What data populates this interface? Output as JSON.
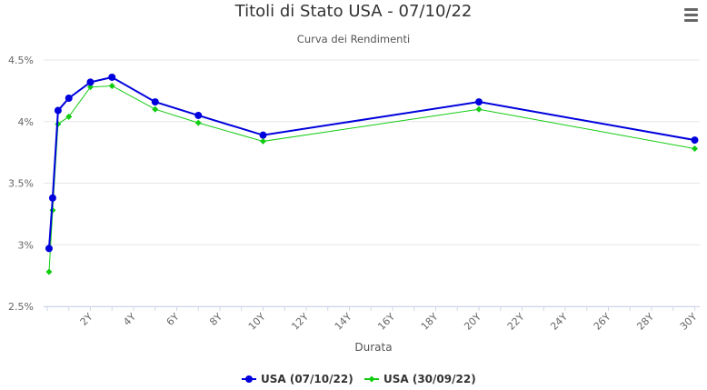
{
  "header": {
    "title": "Titoli di Stato USA - 07/10/22",
    "subtitle": "Curva dei Rendimenti",
    "menu_icon": "hamburger-menu-icon"
  },
  "chart_data": {
    "type": "line",
    "title": "Titoli di Stato USA - 07/10/22",
    "subtitle": "Curva dei Rendimenti",
    "xlabel": "Durata",
    "ylabel": "",
    "xlim": [
      0,
      30
    ],
    "ylim": [
      2.5,
      4.5
    ],
    "x_ticks": [
      "2Y",
      "4Y",
      "6Y",
      "8Y",
      "10Y",
      "12Y",
      "14Y",
      "16Y",
      "18Y",
      "20Y",
      "22Y",
      "24Y",
      "26Y",
      "28Y",
      "30Y"
    ],
    "y_ticks": [
      "2.5%",
      "3%",
      "3.5%",
      "4%",
      "4.5%"
    ],
    "grid": true,
    "legend_position": "bottom-center",
    "series": [
      {
        "name": "USA (07/10/22)",
        "color": "#0000dd",
        "marker": "circle",
        "points": [
          {
            "x": 0.083,
            "y": 2.97
          },
          {
            "x": 0.25,
            "y": 3.38
          },
          {
            "x": 0.5,
            "y": 4.09
          },
          {
            "x": 1,
            "y": 4.19
          },
          {
            "x": 2,
            "y": 4.32
          },
          {
            "x": 3,
            "y": 4.36
          },
          {
            "x": 5,
            "y": 4.16
          },
          {
            "x": 7,
            "y": 4.05
          },
          {
            "x": 10,
            "y": 3.89
          },
          {
            "x": 20,
            "y": 4.16
          },
          {
            "x": 30,
            "y": 3.85
          }
        ]
      },
      {
        "name": "USA (30/09/22)",
        "color": "#11cc11",
        "marker": "diamond",
        "points": [
          {
            "x": 0.083,
            "y": 2.78
          },
          {
            "x": 0.25,
            "y": 3.28
          },
          {
            "x": 0.5,
            "y": 3.98
          },
          {
            "x": 1,
            "y": 4.04
          },
          {
            "x": 2,
            "y": 4.28
          },
          {
            "x": 3,
            "y": 4.29
          },
          {
            "x": 5,
            "y": 4.1
          },
          {
            "x": 7,
            "y": 3.99
          },
          {
            "x": 10,
            "y": 3.84
          },
          {
            "x": 20,
            "y": 4.1
          },
          {
            "x": 30,
            "y": 3.78
          }
        ]
      }
    ]
  }
}
